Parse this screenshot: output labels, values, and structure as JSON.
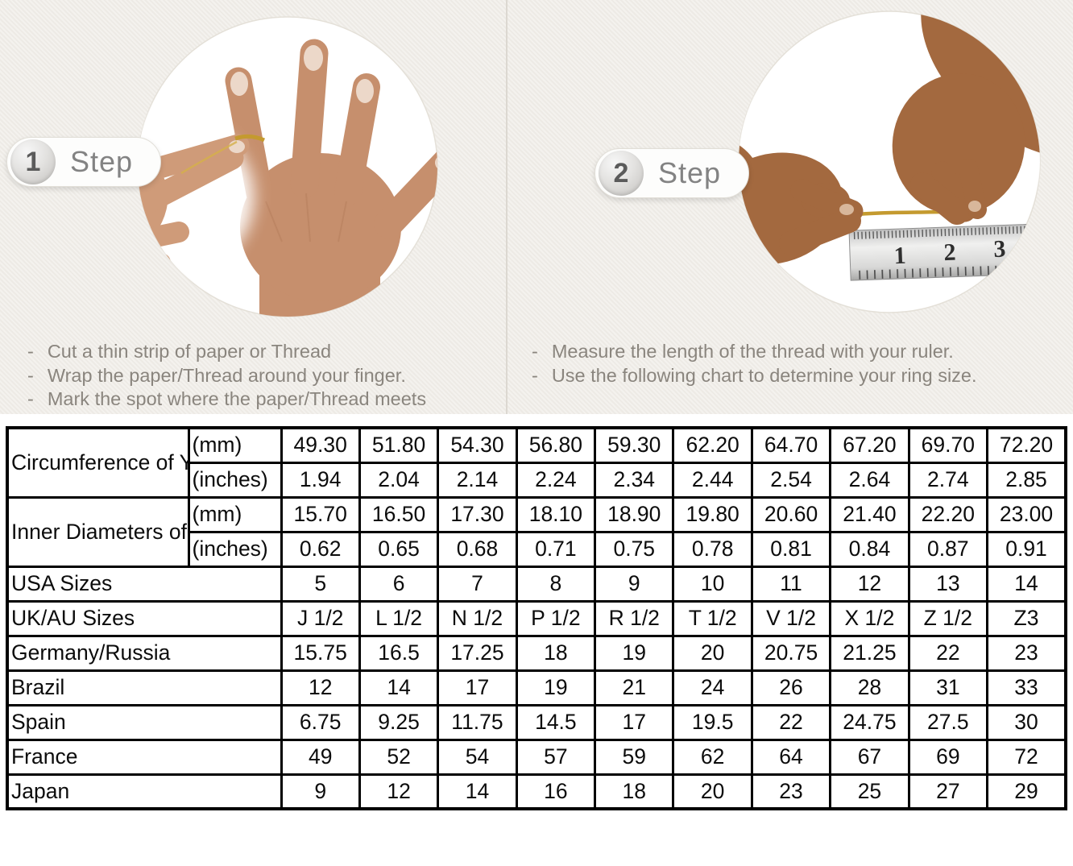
{
  "steps": [
    {
      "number": "1",
      "label": "Step",
      "bullets": [
        "Cut a thin strip of paper or Thread",
        "Wrap the paper/Thread around your finger.",
        "Mark the spot where the paper/Thread meets"
      ]
    },
    {
      "number": "2",
      "label": "Step",
      "bullets": [
        "Measure the length of the thread with your ruler.",
        "Use the following chart to determine your ring size."
      ]
    }
  ],
  "illustrations": {
    "step1_photo": "hand-with-thread-wrapped-around-ring-finger",
    "step2_photo": "hands-measuring-thread-length-with-ruler",
    "ruler_marks": [
      "1",
      "2",
      "3"
    ]
  },
  "chart_data": {
    "type": "table",
    "header_groups": [
      {
        "label": "Circumference of Your Finger",
        "rows": [
          {
            "unit": "(mm)",
            "shaded": true,
            "values": [
              "49.30",
              "51.80",
              "54.30",
              "56.80",
              "59.30",
              "62.20",
              "64.70",
              "67.20",
              "69.70",
              "72.20"
            ]
          },
          {
            "unit": "(inches)",
            "shaded": false,
            "values": [
              "1.94",
              "2.04",
              "2.14",
              "2.24",
              "2.34",
              "2.44",
              "2.54",
              "2.64",
              "2.74",
              "2.85"
            ]
          }
        ]
      },
      {
        "label": "Inner Diameters of Rings",
        "rows": [
          {
            "unit": "(mm)",
            "shaded": false,
            "values": [
              "15.70",
              "16.50",
              "17.30",
              "18.10",
              "18.90",
              "19.80",
              "20.60",
              "21.40",
              "22.20",
              "23.00"
            ]
          },
          {
            "unit": "(inches)",
            "shaded": false,
            "values": [
              "0.62",
              "0.65",
              "0.68",
              "0.71",
              "0.75",
              "0.78",
              "0.81",
              "0.84",
              "0.87",
              "0.91"
            ]
          }
        ]
      }
    ],
    "size_rows": [
      {
        "label": "USA Sizes",
        "shaded": true,
        "values": [
          "5",
          "6",
          "7",
          "8",
          "9",
          "10",
          "11",
          "12",
          "13",
          "14"
        ]
      },
      {
        "label": "UK/AU Sizes",
        "shaded": false,
        "values": [
          "J 1/2",
          "L 1/2",
          "N 1/2",
          "P 1/2",
          "R 1/2",
          "T 1/2",
          "V 1/2",
          "X 1/2",
          "Z 1/2",
          "Z3"
        ]
      },
      {
        "label": "Germany/Russia",
        "shaded": false,
        "values": [
          "15.75",
          "16.5",
          "17.25",
          "18",
          "19",
          "20",
          "20.75",
          "21.25",
          "22",
          "23"
        ]
      },
      {
        "label": "Brazil",
        "shaded": false,
        "values": [
          "12",
          "14",
          "17",
          "19",
          "21",
          "24",
          "26",
          "28",
          "31",
          "33"
        ]
      },
      {
        "label": "Spain",
        "shaded": false,
        "values": [
          "6.75",
          "9.25",
          "11.75",
          "14.5",
          "17",
          "19.5",
          "22",
          "24.75",
          "27.5",
          "30"
        ]
      },
      {
        "label": "France",
        "shaded": false,
        "values": [
          "49",
          "52",
          "54",
          "57",
          "59",
          "62",
          "64",
          "67",
          "69",
          "72"
        ]
      },
      {
        "label": "Japan",
        "shaded": false,
        "values": [
          "9",
          "12",
          "14",
          "16",
          "18",
          "20",
          "23",
          "25",
          "27",
          "29"
        ]
      }
    ]
  },
  "colors": {
    "panel-bg": "#f0ede8",
    "shaded-cell": "#d9d9d9",
    "table-border": "#000000",
    "bullet-text": "#8a857e",
    "step-text": "#838383",
    "gold": "#c49a2f"
  }
}
